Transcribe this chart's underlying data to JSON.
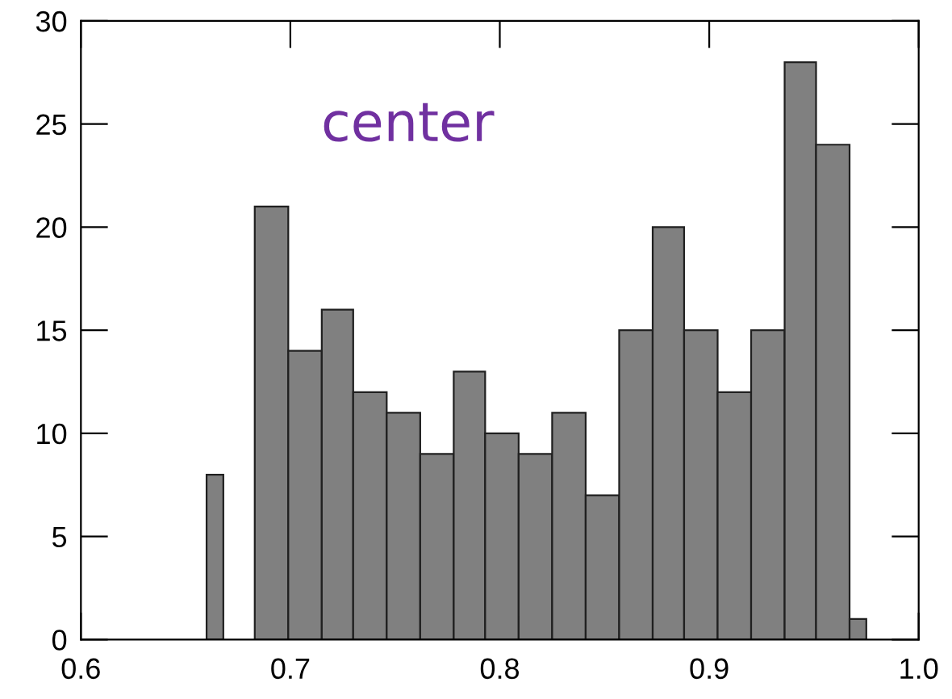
{
  "chart_data": {
    "type": "histogram",
    "annotations": [
      "center"
    ],
    "bins": [
      0.66,
      0.668,
      0.683,
      0.699,
      0.715,
      0.73,
      0.746,
      0.762,
      0.778,
      0.793,
      0.809,
      0.825,
      0.841,
      0.857,
      0.873,
      0.888,
      0.904,
      0.92,
      0.936,
      0.951,
      0.967,
      0.975
    ],
    "values": [
      8,
      0,
      21,
      14,
      16,
      12,
      11,
      9,
      13,
      10,
      9,
      11,
      7,
      15,
      20,
      15,
      12,
      15,
      28,
      24,
      1
    ],
    "color": "#808080",
    "xlim": [
      0.6,
      1.0
    ],
    "xticks": [
      0.6,
      0.7,
      0.8,
      0.9,
      {
        "value": 1.0,
        "label": "1.0"
      }
    ],
    "ylim": [
      0,
      30
    ],
    "yticks": [
      0,
      5,
      10,
      15,
      20,
      25,
      30
    ],
    "grid": false
  }
}
